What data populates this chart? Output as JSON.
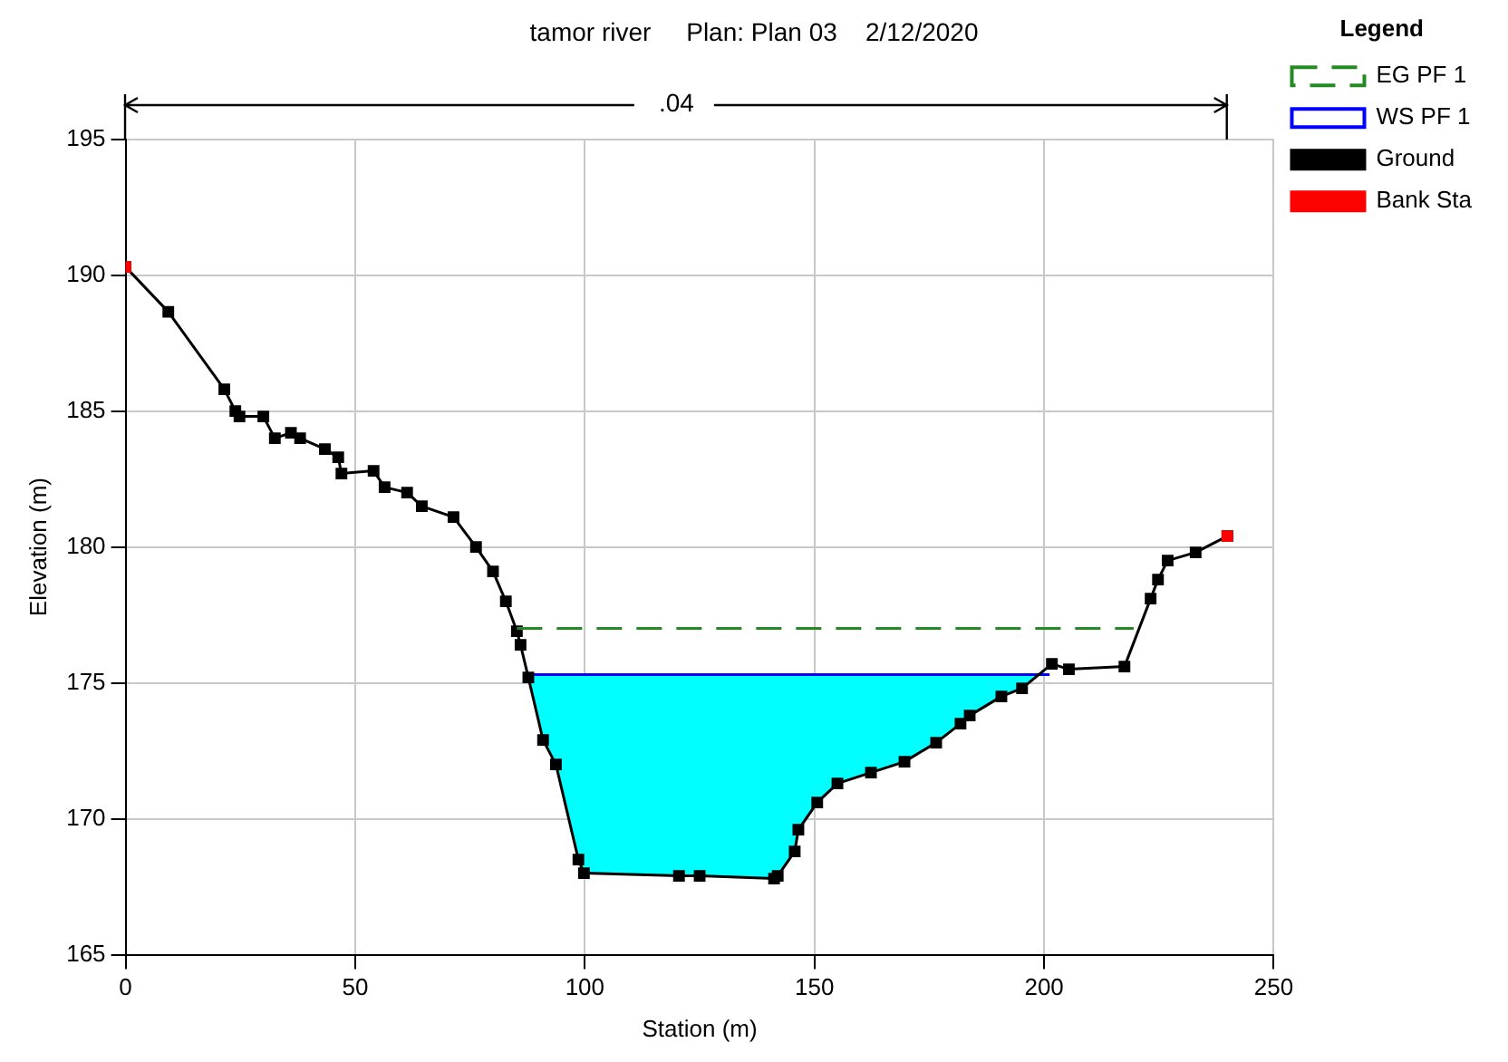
{
  "chart_data": {
    "type": "line",
    "title": "tamor river     Plan: Plan 03    2/12/2020",
    "xlabel": "Station (m)",
    "ylabel": "Elevation (m)",
    "legend_title": "Legend",
    "annotations": [
      ".04"
    ],
    "xlim": [
      0,
      250
    ],
    "xticks": [
      0,
      50,
      100,
      150,
      200,
      250
    ],
    "ylim": [
      165,
      195
    ],
    "yticks": [
      165,
      170,
      175,
      180,
      185,
      190,
      195
    ],
    "grid": true,
    "legend": "right",
    "series": [
      {
        "name": "EG PF 1",
        "color": "#228b22",
        "line_style": "dashed",
        "marker": "none",
        "x": [
          85.2,
          219.5
        ],
        "values": [
          177.0,
          177.0
        ]
      },
      {
        "name": "WS PF 1",
        "type": "area",
        "color": "#0000ff",
        "line_style": "solid",
        "marker": "none",
        "x": [
          87.6,
          201.2
        ],
        "values": [
          175.3,
          175.3
        ]
      },
      {
        "name": "Ground",
        "color": "#000000",
        "line_style": "solid",
        "marker": "square",
        "x": [
          0,
          9.3,
          21.5,
          23.9,
          24.8,
          30,
          32.5,
          36,
          38,
          43.4,
          46.3,
          47,
          54,
          56.4,
          61.3,
          64.5,
          71.4,
          76.3,
          80,
          82.8,
          85.2,
          86,
          87.7,
          90.9,
          93.7,
          98.6,
          99.8,
          120.5,
          125,
          141.2,
          142,
          145.7,
          146.5,
          150.6,
          155,
          162.3,
          169.6,
          176.5,
          181.8,
          183.8,
          190.7,
          195.2,
          201.7,
          205.4,
          217.5,
          223.2,
          224.8,
          226.9,
          233,
          239.9
        ],
        "values": [
          190.3,
          188.65,
          185.8,
          185.0,
          184.8,
          184.8,
          184.0,
          184.2,
          184.0,
          183.6,
          183.3,
          182.7,
          182.8,
          182.2,
          182.0,
          181.5,
          181.1,
          180.0,
          179.1,
          178.0,
          176.9,
          176.4,
          175.2,
          172.9,
          172.0,
          168.5,
          168.0,
          167.9,
          167.9,
          167.8,
          167.9,
          168.8,
          169.6,
          170.6,
          171.3,
          171.7,
          172.1,
          172.8,
          173.5,
          173.8,
          174.5,
          174.8,
          175.7,
          175.5,
          175.6,
          178.1,
          178.8,
          179.5,
          179.8,
          180.4
        ]
      },
      {
        "name": "Bank Sta",
        "type": "scatter",
        "color": "#ff0000",
        "marker": "square",
        "x": [
          0,
          239.9
        ],
        "values": [
          190.3,
          180.4
        ]
      }
    ]
  }
}
